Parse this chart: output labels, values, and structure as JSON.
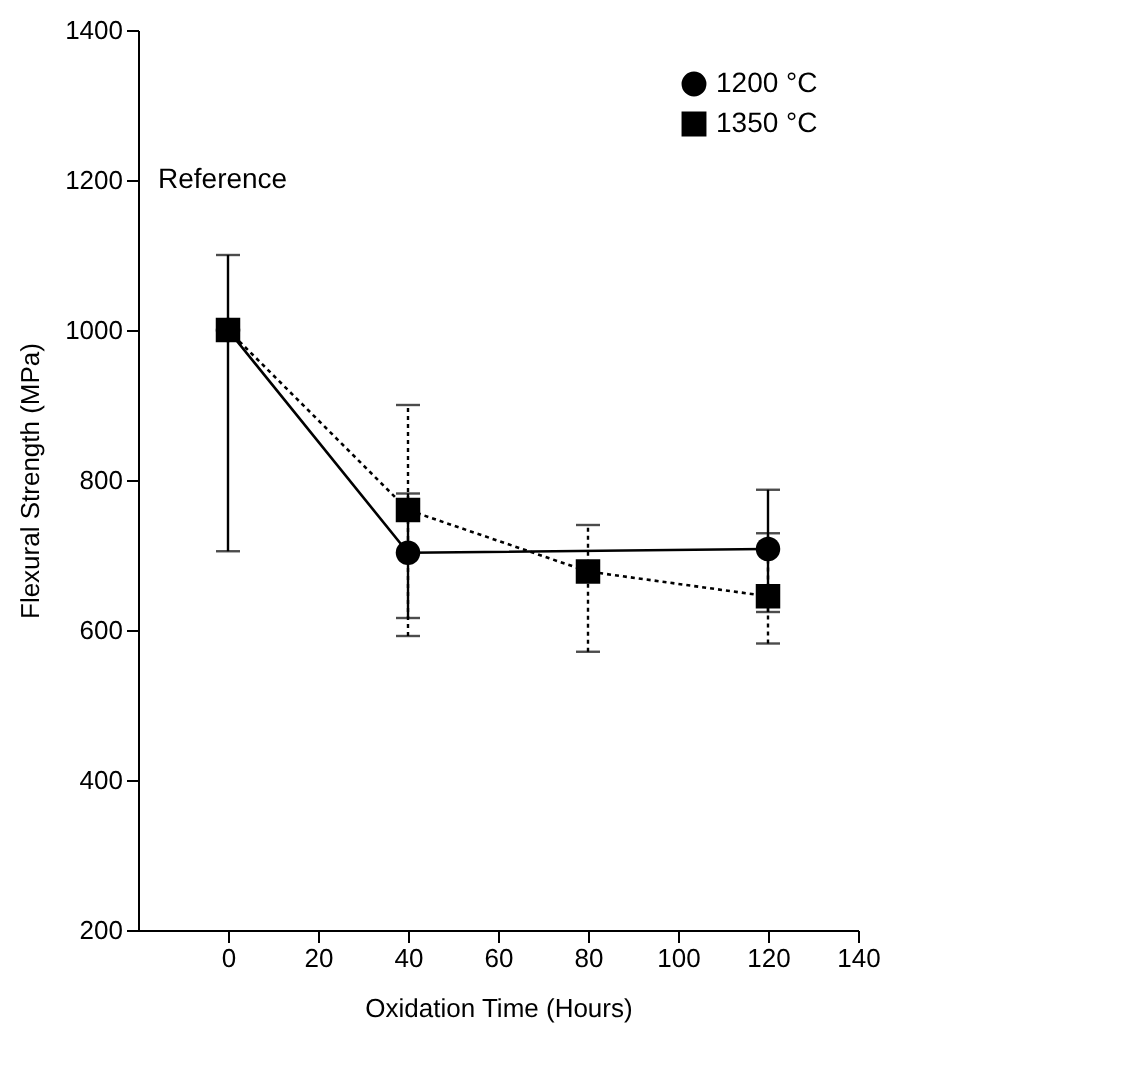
{
  "chart_data": {
    "type": "line",
    "xlabel": "Oxidation Time (Hours)",
    "ylabel": "Flexural Strength (MPa)",
    "xlim": [
      -20,
      140
    ],
    "xticks": [
      0,
      20,
      40,
      60,
      80,
      100,
      120,
      140
    ],
    "ylim": [
      200,
      1400
    ],
    "yticks": [
      200,
      400,
      600,
      800,
      1000,
      1200,
      1400
    ],
    "grid": false,
    "legend": "top right",
    "annotations": [
      "Reference"
    ],
    "series": [
      {
        "name": "1200 °C",
        "color": "#000000",
        "marker": "circle",
        "line_style": "solid",
        "x": [
          0,
          40,
          120
        ],
        "values": [
          1000,
          703,
          708
        ],
        "errors": [
          [
            705,
            1100
          ],
          [
            616,
            782
          ],
          [
            624,
            787
          ]
        ]
      },
      {
        "name": "1350 °C",
        "color": "#000000",
        "marker": "square",
        "line_style": "dotted",
        "x": [
          0,
          40,
          80,
          120
        ],
        "values": [
          1000,
          760,
          678,
          645
        ],
        "errors": [
          null,
          [
            592,
            900
          ],
          [
            571,
            740
          ],
          [
            582,
            729
          ]
        ]
      }
    ]
  }
}
